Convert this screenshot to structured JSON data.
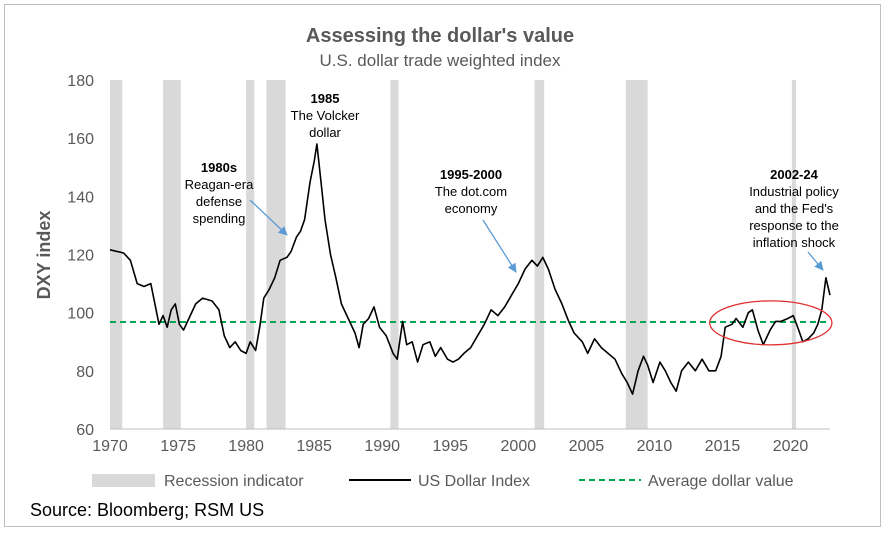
{
  "chart_data": {
    "type": "line",
    "title": "Assessing the dollar's value",
    "subtitle": "U.S. dollar trade weighted index",
    "ylabel": "DXY index",
    "xlabel": "",
    "ylim": [
      60,
      180
    ],
    "xlim": [
      1970,
      2022.9
    ],
    "yticks": [
      60,
      80,
      100,
      120,
      140,
      160,
      180
    ],
    "xticks": [
      1970,
      1975,
      1980,
      1985,
      1990,
      1995,
      2000,
      2005,
      2010,
      2015,
      2020
    ],
    "average_value": 96.8,
    "recessions": [
      [
        1970.0,
        1970.9
      ],
      [
        1973.9,
        1975.2
      ],
      [
        1980.0,
        1980.6
      ],
      [
        1981.5,
        1982.9
      ],
      [
        1990.6,
        1991.2
      ],
      [
        2001.2,
        2001.9
      ],
      [
        2007.9,
        2009.5
      ],
      [
        2020.1,
        2020.4
      ]
    ],
    "series": [
      {
        "name": "US Dollar Index",
        "color": "#000000",
        "points": [
          [
            1970.0,
            121.6
          ],
          [
            1971.0,
            120.5
          ],
          [
            1971.5,
            118.0
          ],
          [
            1972.0,
            110.0
          ],
          [
            1972.5,
            109.0
          ],
          [
            1973.0,
            110.0
          ],
          [
            1973.3,
            103.0
          ],
          [
            1973.6,
            96.0
          ],
          [
            1973.9,
            99.0
          ],
          [
            1974.2,
            95.0
          ],
          [
            1974.5,
            101.0
          ],
          [
            1974.8,
            103.0
          ],
          [
            1975.1,
            96.0
          ],
          [
            1975.4,
            94.0
          ],
          [
            1975.8,
            98.0
          ],
          [
            1976.3,
            103.0
          ],
          [
            1976.8,
            105.0
          ],
          [
            1977.5,
            104.0
          ],
          [
            1978.0,
            101.0
          ],
          [
            1978.4,
            92.0
          ],
          [
            1978.8,
            88.0
          ],
          [
            1979.2,
            90.0
          ],
          [
            1979.6,
            87.0
          ],
          [
            1980.0,
            86.0
          ],
          [
            1980.3,
            90.0
          ],
          [
            1980.7,
            87.0
          ],
          [
            1981.0,
            95.0
          ],
          [
            1981.3,
            105.0
          ],
          [
            1981.7,
            108.0
          ],
          [
            1982.1,
            112.0
          ],
          [
            1982.5,
            118.0
          ],
          [
            1983.0,
            119.0
          ],
          [
            1983.3,
            121.0
          ],
          [
            1983.7,
            126.0
          ],
          [
            1984.0,
            128.0
          ],
          [
            1984.3,
            132.0
          ],
          [
            1984.7,
            145.0
          ],
          [
            1985.0,
            152.0
          ],
          [
            1985.2,
            158.0
          ],
          [
            1985.5,
            145.0
          ],
          [
            1985.8,
            132.0
          ],
          [
            1986.2,
            120.0
          ],
          [
            1986.6,
            112.0
          ],
          [
            1987.0,
            103.0
          ],
          [
            1987.5,
            98.0
          ],
          [
            1988.0,
            93.0
          ],
          [
            1988.3,
            88.0
          ],
          [
            1988.6,
            96.0
          ],
          [
            1989.0,
            98.0
          ],
          [
            1989.4,
            102.0
          ],
          [
            1989.8,
            95.0
          ],
          [
            1990.3,
            92.0
          ],
          [
            1990.8,
            86.0
          ],
          [
            1991.1,
            84.0
          ],
          [
            1991.5,
            97.0
          ],
          [
            1991.8,
            89.0
          ],
          [
            1992.2,
            90.0
          ],
          [
            1992.6,
            83.0
          ],
          [
            1993.0,
            89.0
          ],
          [
            1993.5,
            90.0
          ],
          [
            1993.9,
            85.0
          ],
          [
            1994.3,
            88.0
          ],
          [
            1994.8,
            84.0
          ],
          [
            1995.2,
            83.0
          ],
          [
            1995.6,
            84.0
          ],
          [
            1996.0,
            86.0
          ],
          [
            1996.5,
            88.0
          ],
          [
            1997.0,
            92.0
          ],
          [
            1997.5,
            96.0
          ],
          [
            1998.0,
            101.0
          ],
          [
            1998.5,
            99.0
          ],
          [
            1999.0,
            102.0
          ],
          [
            1999.5,
            106.0
          ],
          [
            2000.0,
            110.0
          ],
          [
            2000.5,
            115.0
          ],
          [
            2001.0,
            118.0
          ],
          [
            2001.4,
            116.0
          ],
          [
            2001.8,
            119.0
          ],
          [
            2002.2,
            115.0
          ],
          [
            2002.7,
            108.0
          ],
          [
            2003.2,
            103.0
          ],
          [
            2003.7,
            97.0
          ],
          [
            2004.1,
            93.0
          ],
          [
            2004.7,
            90.0
          ],
          [
            2005.1,
            86.0
          ],
          [
            2005.6,
            91.0
          ],
          [
            2006.1,
            88.0
          ],
          [
            2006.6,
            86.0
          ],
          [
            2007.1,
            84.0
          ],
          [
            2007.6,
            79.0
          ],
          [
            2008.0,
            76.0
          ],
          [
            2008.4,
            72.0
          ],
          [
            2008.8,
            80.0
          ],
          [
            2009.2,
            85.0
          ],
          [
            2009.5,
            82.0
          ],
          [
            2009.9,
            76.0
          ],
          [
            2010.4,
            83.0
          ],
          [
            2010.8,
            80.0
          ],
          [
            2011.2,
            76.0
          ],
          [
            2011.6,
            73.0
          ],
          [
            2012.0,
            80.0
          ],
          [
            2012.5,
            83.0
          ],
          [
            2013.0,
            80.0
          ],
          [
            2013.5,
            84.0
          ],
          [
            2014.0,
            80.0
          ],
          [
            2014.5,
            80.0
          ],
          [
            2014.9,
            85.0
          ],
          [
            2015.2,
            95.0
          ],
          [
            2015.7,
            96.0
          ],
          [
            2016.0,
            98.0
          ],
          [
            2016.5,
            95.0
          ],
          [
            2016.9,
            100.0
          ],
          [
            2017.2,
            101.0
          ],
          [
            2017.6,
            94.0
          ],
          [
            2018.0,
            89.0
          ],
          [
            2018.5,
            94.0
          ],
          [
            2018.9,
            97.0
          ],
          [
            2019.3,
            97.0
          ],
          [
            2019.8,
            98.0
          ],
          [
            2020.2,
            99.0
          ],
          [
            2020.6,
            94.0
          ],
          [
            2020.9,
            90.0
          ],
          [
            2021.3,
            91.0
          ],
          [
            2021.7,
            93.0
          ],
          [
            2022.0,
            96.0
          ],
          [
            2022.3,
            101.0
          ],
          [
            2022.6,
            112.0
          ],
          [
            2022.9,
            106.0
          ]
        ]
      },
      {
        "name": "Average dollar value",
        "color": "#00a651",
        "style": "dashed",
        "value": 96.8
      }
    ],
    "annotations": [
      {
        "title": "1985",
        "lines": [
          "The Volcker",
          "dollar"
        ]
      },
      {
        "title": "1980s",
        "lines": [
          "Reagan-era",
          "defense",
          "spending"
        ]
      },
      {
        "title": "1995-2000",
        "lines": [
          "The dot.com",
          "economy"
        ]
      },
      {
        "title": "2002-24",
        "lines": [
          "Industrial policy",
          "and the Fed's",
          "response to the",
          "inflation shock"
        ]
      }
    ],
    "highlight": {
      "x_range": [
        2014.5,
        2022.6
      ],
      "y_center": 96.5,
      "color": "#e03030"
    },
    "legend": {
      "position": "bottom",
      "items": [
        "Recession indicator",
        "US Dollar Index",
        "Average dollar value"
      ]
    }
  },
  "colors": {
    "recession": "#d9d9d9",
    "axis_text": "#595959",
    "arrow": "#5b9bd5"
  },
  "footer": {
    "source": "Source: Bloomberg; RSM US"
  }
}
